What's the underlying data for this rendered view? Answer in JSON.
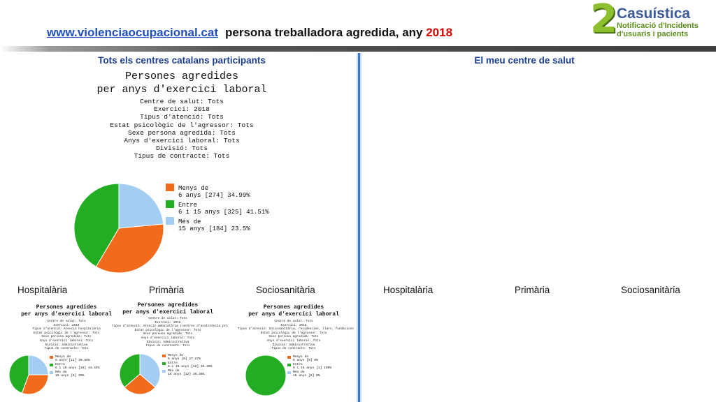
{
  "header": {
    "link": "www.violenciaocupacional.cat",
    "title": "persona treballadora agredida, any",
    "year": "2018"
  },
  "logo": {
    "number": "2",
    "title": "Casuística",
    "subtitle_line1": "Notificació d'Incidents",
    "subtitle_line2": "d'usuaris i pacients"
  },
  "colors": {
    "orange": "#f26b1d",
    "green": "#22ad22",
    "lightblue": "#a3cdf2",
    "heading": "#1d3f8f",
    "divider": "#3f78c4"
  },
  "left_panel": {
    "heading": "Tots els centres catalans participants",
    "sub_labels": [
      "Hospitalària",
      "Primària",
      "Sociosanitària"
    ]
  },
  "right_panel": {
    "heading": "El meu centre de salut",
    "sub_labels": [
      "Hospitalària",
      "Primària",
      "Sociosanitària"
    ]
  },
  "chart_data": [
    {
      "type": "pie",
      "title": [
        "Persones agredides",
        "per anys d'exercici laboral"
      ],
      "filters": [
        "Centre de salut: Tots",
        "Exercici: 2018",
        "Tipus d'atenció: Tots",
        "Estat psicològic de l'agressor: Tots",
        "Sexe persona agredida: Tots",
        "Anys d'exercici laboral: Tots",
        "Divisió: Tots",
        "Tipus de contracte: Tots"
      ],
      "legend": [
        [
          "Menys de",
          "6 anys [274] 34.99%"
        ],
        [
          "Entre",
          "6 i 15 anys [325] 41.51%"
        ],
        [
          "Més de",
          "15 anys [184] 23.5%"
        ]
      ],
      "slices": [
        {
          "label": "Menys de 6 anys",
          "count": 274,
          "percent": 34.99,
          "color": "#f26b1d"
        },
        {
          "label": "Entre 6 i 15 anys",
          "count": 325,
          "percent": 41.51,
          "color": "#22ad22"
        },
        {
          "label": "Més de 15 anys",
          "count": 184,
          "percent": 23.5,
          "color": "#a3cdf2"
        }
      ]
    },
    {
      "type": "pie",
      "title": [
        "Persones agredides",
        "per anys d'exercici laboral"
      ],
      "filters": [
        "Centre de salut: Tots",
        "Exercici: 2018",
        "Tipus d'atenció: Atenció hospitalària",
        "Estat psicològic de l'agressor: Tots",
        "Sexe persona agredida: Tots",
        "Anys d'exercici laboral: Tots",
        "Divisió: Administrativa",
        "Tipus de contracte: Tots"
      ],
      "legend": [
        [
          "Menys de",
          "6 anys [11] 30.56%"
        ],
        [
          "Entre",
          "6 i 15 anys [16] 44.44%"
        ],
        [
          "Més de",
          "15 anys [9] 25%"
        ]
      ],
      "slices": [
        {
          "label": "Menys de 6 anys",
          "count": 11,
          "percent": 30.56,
          "color": "#f26b1d"
        },
        {
          "label": "Entre 6 i 15 anys",
          "count": 16,
          "percent": 44.44,
          "color": "#22ad22"
        },
        {
          "label": "Més de 15 anys",
          "count": 9,
          "percent": 25,
          "color": "#a3cdf2"
        }
      ]
    },
    {
      "type": "pie",
      "title": [
        "Persones agredides",
        "per anys d'exercici laboral"
      ],
      "filters": [
        "Centre de salut: Tots",
        "Exercici: 2018",
        "Tipus d'atenció: Atenció ambulatòria (centres d'assistència pri",
        "Estat psicològic de l'agressor: Tots",
        "Sexe persona agredida: Tots",
        "Anys d'exercici laboral: Tots",
        "Divisió: Administrativa",
        "Tipus de contracte: Tots"
      ],
      "legend": [
        [
          "Menys de",
          "6 anys [9] 27.27%"
        ],
        [
          "Entre",
          "6 i 15 anys [12] 36.36%"
        ],
        [
          "Més de",
          "15 anys [12] 36.36%"
        ]
      ],
      "slices": [
        {
          "label": "Menys de 6 anys",
          "count": 9,
          "percent": 27.27,
          "color": "#f26b1d"
        },
        {
          "label": "Entre 6 i 15 anys",
          "count": 12,
          "percent": 36.36,
          "color": "#22ad22"
        },
        {
          "label": "Més de 15 anys",
          "count": 12,
          "percent": 36.36,
          "color": "#a3cdf2"
        }
      ]
    },
    {
      "type": "pie",
      "title": [
        "Persones agredides",
        "per anys d'exercici laboral"
      ],
      "filters": [
        "Centre de salut: Tots",
        "Exercici: 2018",
        "Tipus d'atenció: Sociosanitària, residències, llars, fundacions",
        "Estat psicològic de l'agressor: Tots",
        "Sexe persona agredida: Tots",
        "Anys d'exercici laboral: Tots",
        "Divisió: Administrativa",
        "Tipus de contracte: Tots"
      ],
      "legend": [
        [
          "Menys de",
          "6 anys [0] 0%"
        ],
        [
          "Entre",
          "6 i 15 anys [1] 100%"
        ],
        [
          "Més de",
          "15 anys [0] 0%"
        ]
      ],
      "slices": [
        {
          "label": "Menys de 6 anys",
          "count": 0,
          "percent": 0,
          "color": "#f26b1d"
        },
        {
          "label": "Entre 6 i 15 anys",
          "count": 1,
          "percent": 100,
          "color": "#22ad22"
        },
        {
          "label": "Més de 15 anys",
          "count": 0,
          "percent": 0,
          "color": "#a3cdf2"
        }
      ]
    }
  ]
}
